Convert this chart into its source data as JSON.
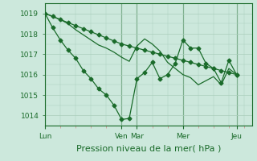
{
  "bg_color": "#cce8dc",
  "plot_bg_color": "#cce8dc",
  "line_color": "#1a6b2a",
  "grid_color": "#aacebb",
  "tick_color": "#cc8888",
  "axis_color": "#1a6b2a",
  "ylim": [
    1013.5,
    1019.5
  ],
  "yticks": [
    1014,
    1015,
    1016,
    1017,
    1018,
    1019
  ],
  "xlabel": "Pression niveau de la mer( hPa )",
  "xlabel_fontsize": 8,
  "tick_fontsize": 6.5,
  "day_labels": [
    "Lun",
    "Ven",
    "Mar",
    "Mer",
    "Jeu"
  ],
  "day_positions": [
    0,
    10,
    12,
    18,
    25
  ],
  "xlim": [
    0,
    27
  ],
  "series1_x": [
    0,
    1,
    2,
    3,
    4,
    5,
    6,
    7,
    8,
    9,
    10,
    11,
    12,
    13,
    14,
    15,
    16,
    17,
    18,
    19,
    20,
    21,
    22,
    23,
    24,
    25
  ],
  "series1_y": [
    1019.0,
    1018.85,
    1018.7,
    1018.55,
    1018.4,
    1018.25,
    1018.1,
    1017.95,
    1017.8,
    1017.65,
    1017.5,
    1017.4,
    1017.3,
    1017.2,
    1017.1,
    1017.0,
    1016.9,
    1016.8,
    1016.7,
    1016.6,
    1016.5,
    1016.4,
    1016.3,
    1016.2,
    1016.1,
    1016.0
  ],
  "series2_x": [
    0,
    1,
    2,
    3,
    4,
    5,
    6,
    7,
    8,
    9,
    10,
    11,
    12,
    13,
    14,
    15,
    16,
    17,
    18,
    19,
    20,
    21,
    22,
    23,
    24,
    25
  ],
  "series2_y": [
    1019.0,
    1018.3,
    1017.7,
    1017.2,
    1016.8,
    1016.2,
    1015.8,
    1015.3,
    1015.0,
    1014.5,
    1013.8,
    1013.85,
    1015.8,
    1016.1,
    1016.6,
    1015.8,
    1016.0,
    1016.55,
    1017.7,
    1017.3,
    1017.3,
    1016.55,
    1016.3,
    1015.6,
    1016.7,
    1016.0
  ],
  "series3_x": [
    0,
    1,
    2,
    3,
    4,
    5,
    6,
    7,
    8,
    9,
    10,
    11,
    12,
    13,
    14,
    15,
    16,
    17,
    18,
    19,
    20,
    21,
    22,
    23,
    24,
    25
  ],
  "series3_y": [
    1019.0,
    1018.85,
    1018.7,
    1018.5,
    1018.2,
    1017.95,
    1017.7,
    1017.45,
    1017.3,
    1017.1,
    1016.85,
    1016.65,
    1017.4,
    1017.75,
    1017.5,
    1017.15,
    1016.6,
    1016.3,
    1016.0,
    1015.85,
    1015.5,
    1015.7,
    1015.9,
    1015.5,
    1016.3,
    1016.0
  ]
}
